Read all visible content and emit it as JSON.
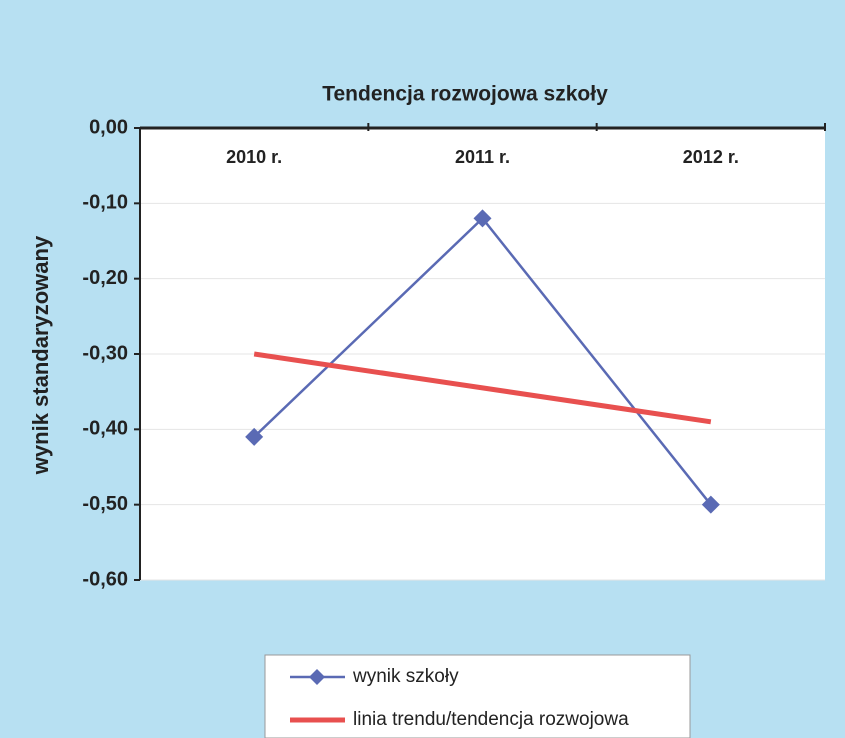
{
  "chart_data": {
    "type": "line",
    "title": "Tendencja rozwojowa szkoły",
    "y_label": "wynik standaryzowany",
    "categories": [
      "2010 r.",
      "2011 r.",
      "2012 r."
    ],
    "series": [
      {
        "name": "wynik szkoły",
        "color": "#5a6ab4",
        "marker": "diamond",
        "values": [
          -0.41,
          -0.12,
          -0.5
        ]
      },
      {
        "name": "linia trendu/tendencja rozwojowa",
        "color": "#e8504f",
        "values": [
          -0.3,
          -0.345,
          -0.39
        ]
      }
    ],
    "ylim": [
      -0.6,
      0
    ],
    "yticks": [
      {
        "value": 0,
        "label": "0,00"
      },
      {
        "value": -0.1,
        "label": "-0,10"
      },
      {
        "value": -0.2,
        "label": "-0,20"
      },
      {
        "value": -0.3,
        "label": "-0,30"
      },
      {
        "value": -0.4,
        "label": "-0,40"
      },
      {
        "value": -0.5,
        "label": "-0,50"
      },
      {
        "value": -0.6,
        "label": "-0,60"
      }
    ],
    "grid": true,
    "legend": "bottom"
  }
}
